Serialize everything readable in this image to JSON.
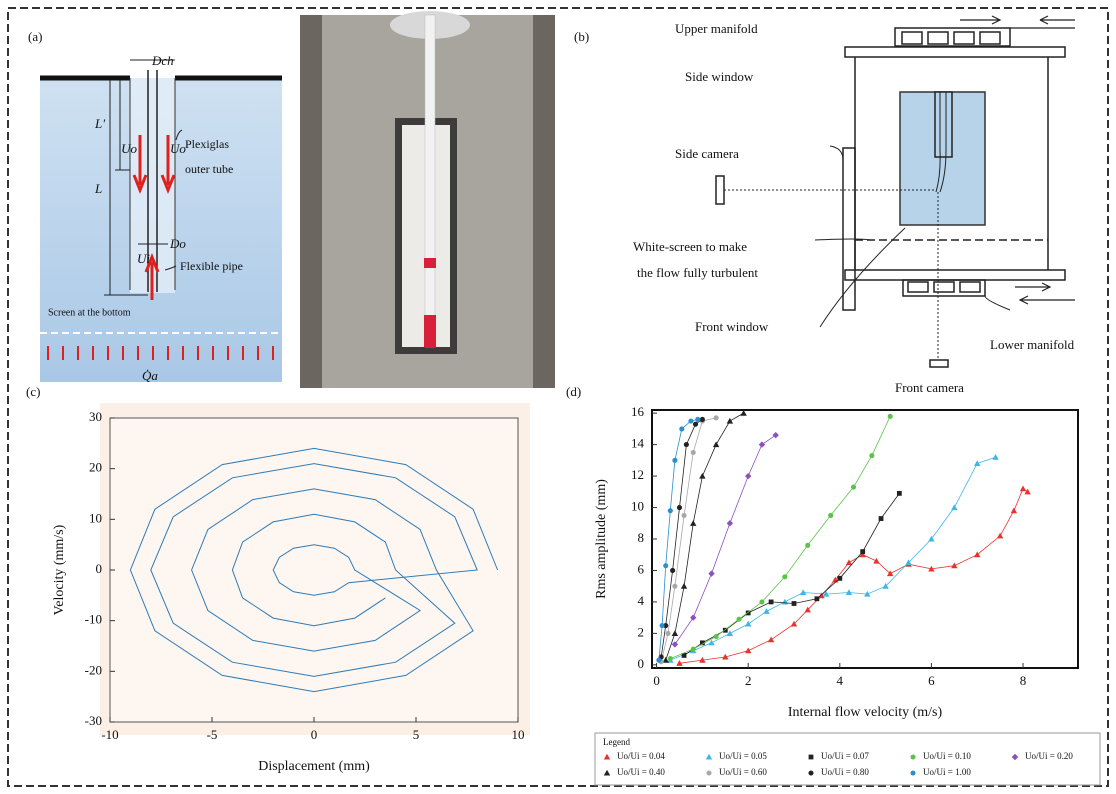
{
  "panels": {
    "a": "(a)",
    "b": "(b)",
    "c": "(c)",
    "d": "(d)"
  },
  "schematic": {
    "d_ch": "Dch",
    "l_prime": "L'",
    "u_o_left": "Uo",
    "u_o_right": "Uo",
    "outer_tube_1": "Plexiglas",
    "outer_tube_2": "outer tube",
    "l": "L",
    "d_o": "Do",
    "u_i": "Ui",
    "flexible_pipe": "Flexible pipe",
    "screen": "Screen at the bottom",
    "q_a": "Q̇a"
  },
  "setup": {
    "upper_manifold": "Upper manifold",
    "side_window": "Side window",
    "side_camera": "Side camera",
    "white_screen_1": "White-screen to make",
    "white_screen_2": "the flow fully turbulent",
    "front_window": "Front window",
    "lower_manifold": "Lower manifold",
    "front_camera": "Front camera"
  },
  "chart_data": [
    {
      "type": "line",
      "color": "#2f7bb6",
      "x_label": "Displacement (mm)",
      "y_label": "Velocity (mm/s)",
      "xlim": [
        -10,
        10
      ],
      "ylim": [
        -30,
        30
      ],
      "xticks": [
        -10,
        -5,
        0,
        5,
        10
      ],
      "yticks": [
        -30,
        -20,
        -10,
        0,
        10,
        20,
        30
      ],
      "x": [
        9,
        7.8,
        4.5,
        0,
        -4.5,
        -7.8,
        -9,
        -7.8,
        -4.5,
        0,
        4.5,
        7.8,
        6,
        5.2,
        3,
        0,
        -3,
        -5.2,
        -6,
        -5.2,
        -3,
        0,
        3,
        5.2,
        2,
        1.7,
        1,
        0,
        -1,
        -1.7,
        -2,
        -1.7,
        -1,
        0,
        1,
        1.7,
        8,
        6.9,
        4,
        0,
        -4,
        -6.9,
        -8,
        -6.9,
        -4,
        0,
        4,
        6.9,
        4,
        3.5,
        2,
        0,
        -2,
        -3.5,
        -4,
        -3.5,
        -2,
        0,
        2,
        3.5
      ],
      "values": [
        0,
        12,
        20.8,
        24,
        20.8,
        12,
        0,
        -12,
        -20.8,
        -24,
        -20.8,
        -12,
        0,
        8,
        13.9,
        16,
        13.9,
        8,
        0,
        -8,
        -13.9,
        -16,
        -13.9,
        -8,
        0,
        2.5,
        4.3,
        5,
        4.3,
        2.5,
        0,
        -2.5,
        -4.3,
        -5,
        -4.3,
        -2.5,
        0,
        10.5,
        18.2,
        21,
        18.2,
        10.5,
        0,
        -10.5,
        -18.2,
        -21,
        -18.2,
        -10.5,
        0,
        5.5,
        9.5,
        11,
        9.5,
        5.5,
        0,
        -5.5,
        -9.5,
        -11,
        -9.5,
        -5.5
      ]
    },
    {
      "type": "line",
      "x_label": "Internal flow velocity    (m/s)",
      "y_label": "Rms amplitude (mm)",
      "legend_title": "Legend",
      "xlim": [
        -0.1,
        9.2
      ],
      "ylim": [
        -0.2,
        16.2
      ],
      "xticks": [
        0,
        2,
        4,
        6,
        8
      ],
      "yticks": [
        0,
        2,
        4,
        6,
        8,
        10,
        12,
        14,
        16
      ],
      "series": [
        {
          "name": "Uo/Ui = 0.04",
          "color": "#e8322d",
          "marker": "triangle",
          "x": [
            0.5,
            1,
            1.5,
            2,
            2.5,
            3,
            3.3,
            3.6,
            3.9,
            4.2,
            4.5,
            4.8,
            5.1,
            5.5,
            6,
            6.5,
            7,
            7.5,
            7.8,
            8,
            8.1
          ],
          "values": [
            0.1,
            0.3,
            0.5,
            0.9,
            1.6,
            2.6,
            3.5,
            4.4,
            5.4,
            6.5,
            7,
            6.6,
            5.8,
            6.4,
            6.1,
            6.3,
            7,
            8.2,
            9.8,
            11.2,
            11
          ]
        },
        {
          "name": "Uo/Ui = 0.05",
          "color": "#3fb6e8",
          "marker": "triangle",
          "x": [
            0.3,
            0.8,
            1.2,
            1.6,
            2,
            2.4,
            2.8,
            3.2,
            3.7,
            4.2,
            4.6,
            5,
            5.5,
            6,
            6.5,
            7,
            7.4
          ],
          "values": [
            0.3,
            0.9,
            1.4,
            2,
            2.6,
            3.4,
            4,
            4.6,
            4.5,
            4.6,
            4.5,
            5,
            6.5,
            8,
            10,
            12.8,
            13.2
          ]
        },
        {
          "name": "Uo/Ui = 0.07",
          "color": "#222222",
          "marker": "square",
          "x": [
            0.6,
            1,
            1.5,
            2,
            2.5,
            3,
            3.5,
            4,
            4.5,
            4.9,
            5.3
          ],
          "values": [
            0.6,
            1.4,
            2.2,
            3.3,
            4,
            3.9,
            4.2,
            5.5,
            7.2,
            9.3,
            10.9
          ]
        },
        {
          "name": "Uo/Ui = 0.10",
          "color": "#5cc34a",
          "marker": "circle",
          "x": [
            0.3,
            0.8,
            1.3,
            1.8,
            2.3,
            2.8,
            3.3,
            3.8,
            4.3,
            4.7,
            5.1
          ],
          "values": [
            0.4,
            1,
            1.8,
            2.9,
            4,
            5.6,
            7.6,
            9.5,
            11.3,
            13.3,
            15.8
          ]
        },
        {
          "name": "Uo/Ui = 0.20",
          "color": "#8a4fc0",
          "marker": "diamond",
          "x": [
            0.4,
            0.8,
            1.2,
            1.6,
            2,
            2.3,
            2.6
          ],
          "values": [
            1.3,
            3,
            5.8,
            9,
            12,
            14,
            14.6
          ]
        },
        {
          "name": "Uo/Ui = 0.40",
          "color": "#222222",
          "marker": "triangle",
          "x": [
            0.2,
            0.4,
            0.6,
            0.8,
            1,
            1.3,
            1.6,
            1.9
          ],
          "values": [
            0.3,
            2,
            5,
            9,
            12,
            14,
            15.5,
            16
          ]
        },
        {
          "name": "Uo/Ui = 0.60",
          "color": "#a8a8a8",
          "marker": "circle",
          "x": [
            0.1,
            0.25,
            0.4,
            0.6,
            0.8,
            1,
            1.3
          ],
          "values": [
            0.2,
            2,
            5,
            9.5,
            13.5,
            15.5,
            15.7
          ]
        },
        {
          "name": "Uo/Ui = 0.80",
          "color": "#222222",
          "marker": "circle",
          "x": [
            0.1,
            0.2,
            0.35,
            0.5,
            0.65,
            0.85,
            1
          ],
          "values": [
            0.5,
            2.5,
            6,
            10,
            14,
            15.3,
            15.6
          ]
        },
        {
          "name": "Uo/Ui = 1.00",
          "color": "#2a8fd0",
          "marker": "circle",
          "x": [
            0.05,
            0.12,
            0.2,
            0.3,
            0.4,
            0.55,
            0.75,
            0.9
          ],
          "values": [
            0.3,
            2.5,
            6.3,
            9.8,
            13,
            15,
            15.5,
            15.6
          ]
        }
      ]
    }
  ]
}
